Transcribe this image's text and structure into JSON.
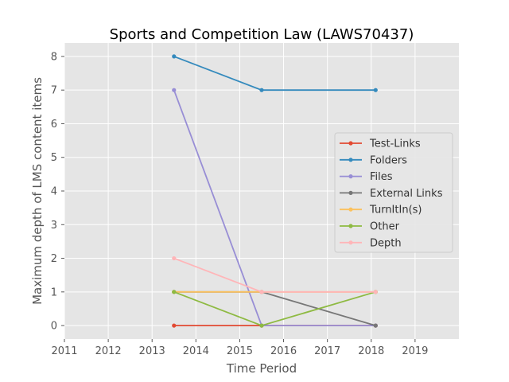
{
  "chart_data": {
    "type": "line",
    "title": "Sports and Competition Law (LAWS70437)",
    "xlabel": "Time Period",
    "ylabel": "Maximum depth of LMS content items",
    "xlim": [
      2011,
      2020
    ],
    "ylim": [
      -0.4,
      8.4
    ],
    "xticks": [
      "2011",
      "2012",
      "2013",
      "2014",
      "2015",
      "2016",
      "2017",
      "2018",
      "2019"
    ],
    "yticks": [
      "0",
      "1",
      "2",
      "3",
      "4",
      "5",
      "6",
      "7",
      "8"
    ],
    "grid": true,
    "legend_position": "center-right",
    "x": [
      2013.5,
      2015.5,
      2018.1
    ],
    "series": [
      {
        "name": "Test-Links",
        "color": "#E24A33",
        "values": [
          0,
          0,
          0
        ]
      },
      {
        "name": "Folders",
        "color": "#348ABD",
        "values": [
          8,
          7,
          7
        ]
      },
      {
        "name": "Files",
        "color": "#988ED5",
        "values": [
          7,
          0,
          0
        ]
      },
      {
        "name": "External Links",
        "color": "#777777",
        "values": [
          1,
          1,
          0
        ]
      },
      {
        "name": "TurnItIn(s)",
        "color": "#FBC15E",
        "values": [
          1,
          1,
          1
        ]
      },
      {
        "name": "Other",
        "color": "#8EBA42",
        "values": [
          1,
          0,
          1
        ]
      },
      {
        "name": "Depth",
        "color": "#FFB5B8",
        "values": [
          2,
          1,
          1
        ]
      }
    ]
  }
}
